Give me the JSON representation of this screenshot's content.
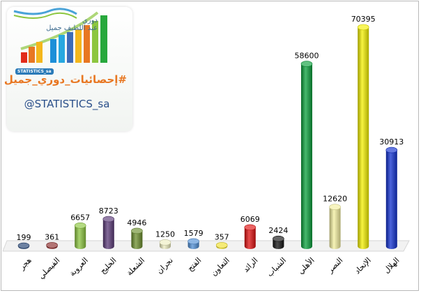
{
  "branding": {
    "league_line1": "دوري",
    "league_line2": "عبد اللطيف جميل",
    "badge_text": "STATISTICS_sa",
    "hashtag": "#إحصائيات_دوري_جميل",
    "handle": "@STATISTICS_sa",
    "colors": {
      "hashtag": "#e87722",
      "handle": "#2a4f8a"
    }
  },
  "chart_data": {
    "type": "bar",
    "title": "",
    "xlabel": "",
    "ylabel": "",
    "grid": false,
    "legend": "none",
    "ylim": [
      0,
      70395
    ],
    "categories": [
      "هجر",
      "الفيصلي",
      "العروبة",
      "الخليج",
      "الشعلة",
      "نجران",
      "الفتح",
      "التعاون",
      "الرائد",
      "الشباب",
      "الأهلي",
      "النصر",
      "الإتحاد",
      "الهلال"
    ],
    "values": [
      199,
      361,
      6657,
      8723,
      4946,
      1250,
      1579,
      357,
      6069,
      2424,
      58600,
      12620,
      70395,
      30913
    ],
    "colors": [
      "#1f3f70",
      "#8a2b2b",
      "#8cc63f",
      "#5b3a78",
      "#6c8f2e",
      "#eeeec0",
      "#4f8fd6",
      "#f0e030",
      "#e01010",
      "#111111",
      "#0aa03c",
      "#f4f0a0",
      "#f4f000",
      "#1030d0"
    ]
  }
}
